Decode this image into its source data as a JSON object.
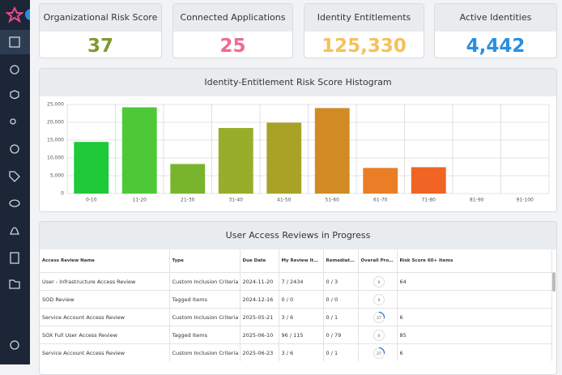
{
  "cards": [
    {
      "title": "Organizational Risk Score",
      "value": "37",
      "color": "#7f9a2e"
    },
    {
      "title": "Connected Applications",
      "value": "25",
      "color": "#ef6b8f"
    },
    {
      "title": "Identity Entitlements",
      "value": "125,330",
      "color": "#f5c15a"
    },
    {
      "title": "Active Identities",
      "value": "4,442",
      "color": "#2a8fe0"
    }
  ],
  "chart_data": {
    "type": "bar",
    "title": "Identity-Entitlement Risk Score Histogram",
    "categories": [
      "0-10",
      "11-20",
      "21-30",
      "31-40",
      "41-50",
      "51-60",
      "61-70",
      "71-80",
      "81-90",
      "91-100"
    ],
    "values": [
      14500,
      24200,
      8300,
      18400,
      19900,
      24000,
      7200,
      7400,
      0,
      0
    ],
    "colors": [
      "#1ec93a",
      "#4dc837",
      "#78b52c",
      "#98ad29",
      "#a9a227",
      "#d08b24",
      "#e97e26",
      "#f06424",
      "#f06424",
      "#f06424"
    ],
    "ylim": [
      0,
      25000
    ],
    "yticks": [
      0,
      {
        "value": 5000,
        "label": "5,000"
      },
      {
        "value": 10000,
        "label": "10,000"
      },
      {
        "value": 15000,
        "label": "15,000"
      },
      {
        "value": 20000,
        "label": "20,000"
      },
      {
        "value": 25000,
        "label": "25,000"
      }
    ],
    "grid": true
  },
  "table": {
    "title": "User Access Reviews in Progress",
    "columns": [
      "Access Review Name",
      "Type",
      "Due Date",
      "My Review Items",
      "Remediation",
      "Overall Progress",
      "Risk Score 60+ Items"
    ],
    "rows": [
      [
        "User - Infrastructure Access Review",
        "Custom Inclusion Criteria",
        "2024-11-20",
        "7 / 2434",
        "0 / 3",
        0,
        "64"
      ],
      [
        "SOD Review",
        "Tagged Items",
        "2024-12-16",
        "0 / 0",
        "0 / 0",
        0,
        null
      ],
      [
        "Service Account Access Review",
        "Custom Inclusion Criteria",
        "2025-05-21",
        "3 / 6",
        "0 / 1",
        27,
        "6"
      ],
      [
        "SOX Full User Access Review",
        "Tagged Items",
        "2025-06-10",
        "96 / 115",
        "0 / 79",
        0,
        "85"
      ],
      [
        "Service Account Access Review",
        "Custom Inclusion Criteria",
        "2025-06-23",
        "3 / 6",
        "0 / 1",
        27,
        "6"
      ]
    ]
  }
}
